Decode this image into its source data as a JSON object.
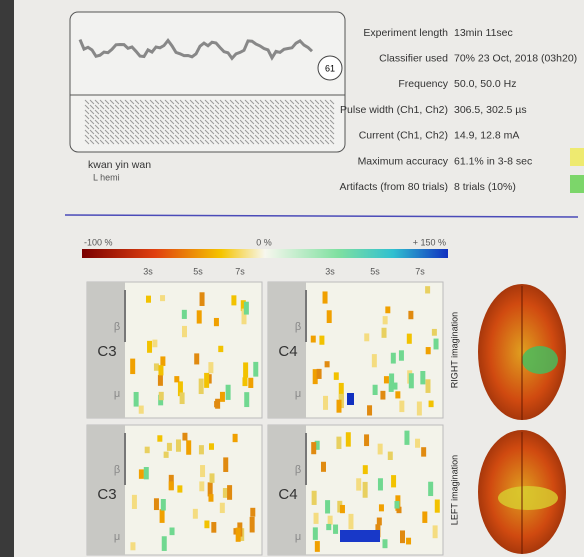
{
  "report": {
    "waveform_count": "61",
    "patient": {
      "name": "kwan yin wan",
      "note": "L hemi"
    },
    "fields": [
      {
        "label": "Experiment length",
        "value": "13min 11sec"
      },
      {
        "label": "Classifier used",
        "value": "70% 23 Oct, 2018 (03h20)"
      },
      {
        "label": "Frequency",
        "value": "50.0, 50.0 Hz"
      },
      {
        "label": "Pulse width (Ch1, Ch2)",
        "value": "306.5, 302.5 µs"
      },
      {
        "label": "Current (Ch1, Ch2)",
        "value": "14.9, 12.8 mA"
      },
      {
        "label": "Maximum accuracy",
        "value": "61.1% in 3-8 sec"
      },
      {
        "label": "Artifacts (from 80 trials)",
        "value": "8 trials (10%)"
      }
    ]
  },
  "colorbar": {
    "min": "-100 %",
    "mid": "0 %",
    "max": "+ 150 %"
  },
  "time_labels": [
    "3s",
    "5s",
    "7s"
  ],
  "bands": [
    "β",
    "μ"
  ],
  "panels": [
    "C3",
    "C4",
    "C3",
    "C4"
  ],
  "rows": [
    "RIGHT imagination",
    "LEFT imagination"
  ]
}
